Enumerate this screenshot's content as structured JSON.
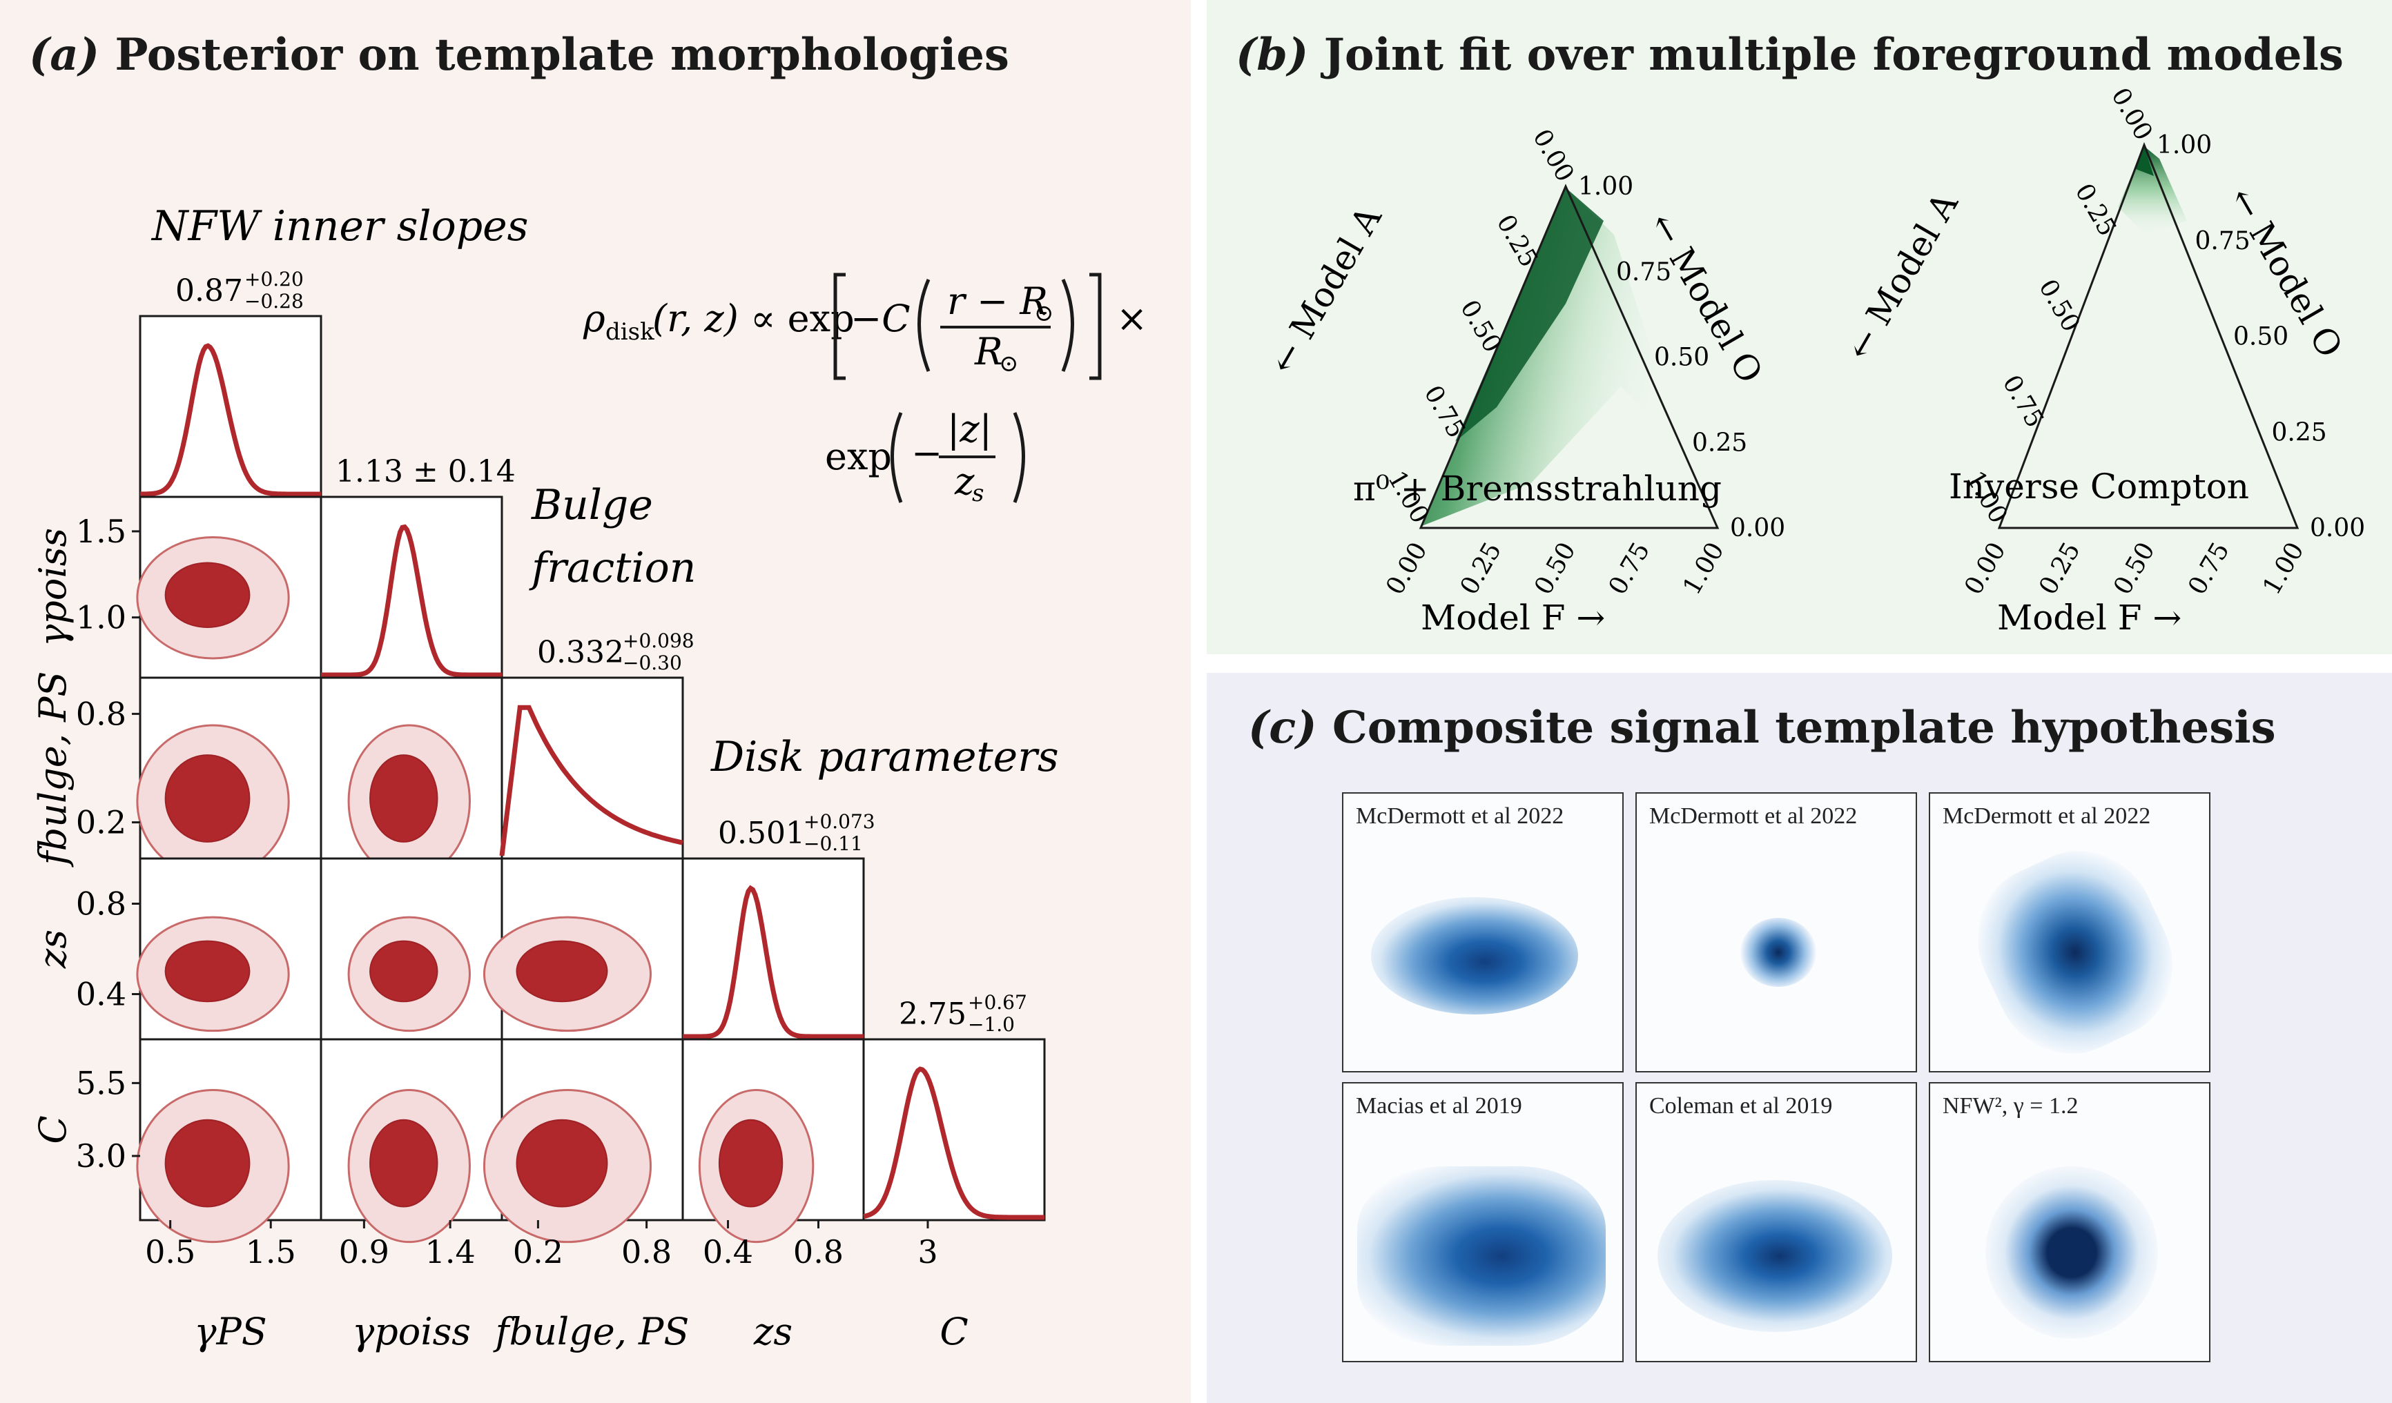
{
  "panel_a": {
    "title_prefix": "(a)",
    "title": "Posterior on template morphologies",
    "section_nfw": "NFW inner slopes",
    "section_bulge_line1": "Bulge",
    "section_bulge_line2": "fraction",
    "section_disk": "Disk parameters",
    "formula_line1": "ρdisk(r, z) ∝ exp[ −C ( (r − R⊙) / R⊙ ) ] ×",
    "formula_line2": "exp( −|z| / zs )"
  },
  "panel_b": {
    "title_prefix": "(b)",
    "title": "Joint fit over multiple foreground models",
    "ternary_left_label": "π⁰ + Bremsstrahlung",
    "ternary_right_label": "Inverse Compton",
    "axis_a": "← Model A",
    "axis_o": "← Model O",
    "axis_f": "Model F →"
  },
  "panel_c": {
    "title_prefix": "(c)",
    "title": "Composite signal template hypothesis",
    "captions": [
      "McDermott et al 2022",
      "McDermott et al 2022",
      "McDermott et al 2022",
      "Macias et al 2019",
      "Coleman et al 2019",
      "NFW², γ = 1.2"
    ]
  },
  "colors": {
    "red": "#b0272c",
    "red_dark": "#b73034",
    "red_light": "#f4dcdc",
    "green": "#0b5a2a",
    "blue": "#1c5b9e",
    "blue_dark": "#0c2a5c"
  },
  "chart_data": [
    {
      "type": "scatter",
      "name": "corner",
      "parameters": [
        "γPS",
        "γpoiss",
        "fbulge, PS",
        "zs",
        "C"
      ],
      "marginal_labels": [
        {
          "main": "0.87",
          "sup": "+0.20",
          "sub": "−0.28"
        },
        {
          "main": "1.13 ± 0.14",
          "sup": "",
          "sub": ""
        },
        {
          "main": "0.332",
          "sup": "+0.098",
          "sub": "−0.30"
        },
        {
          "main": "0.501",
          "sup": "+0.073",
          "sub": "−0.11"
        },
        {
          "main": "2.75",
          "sup": "+0.67",
          "sub": "−1.0"
        }
      ],
      "ranges": [
        [
          0.2,
          2.0
        ],
        [
          0.65,
          1.7
        ],
        [
          0.0,
          1.0
        ],
        [
          0.2,
          1.0
        ],
        [
          0.8,
          7.0
        ]
      ],
      "medians": [
        0.87,
        1.13,
        0.332,
        0.501,
        2.75
      ],
      "x_ticks": [
        [
          "0.5",
          "1.5"
        ],
        [
          "0.9",
          "1.4"
        ],
        [
          "0.2",
          "0.8"
        ],
        [
          "0.4",
          "0.8"
        ],
        [
          "3"
        ]
      ],
      "x_tick_values": [
        [
          0.5,
          1.5
        ],
        [
          0.9,
          1.4
        ],
        [
          0.2,
          0.8
        ],
        [
          0.4,
          0.8
        ],
        [
          3
        ]
      ],
      "y_ticks": [
        [],
        [
          "1.5",
          "1.0"
        ],
        [
          "0.8",
          "0.2"
        ],
        [
          "0.8",
          "0.4"
        ],
        [
          "5.5",
          "3.0"
        ]
      ],
      "y_tick_values": [
        [],
        [
          1.5,
          1.0
        ],
        [
          0.8,
          0.2
        ],
        [
          0.8,
          0.4
        ],
        [
          5.5,
          3.0
        ]
      ]
    },
    {
      "type": "heatmap",
      "name": "ternary",
      "axes": [
        "Model A",
        "Model O",
        "Model F"
      ],
      "ticks": [
        "0.00",
        "0.25",
        "0.50",
        "0.75",
        "1.00"
      ],
      "plots": [
        "π⁰ + Bremsstrahlung",
        "Inverse Compton"
      ]
    }
  ]
}
